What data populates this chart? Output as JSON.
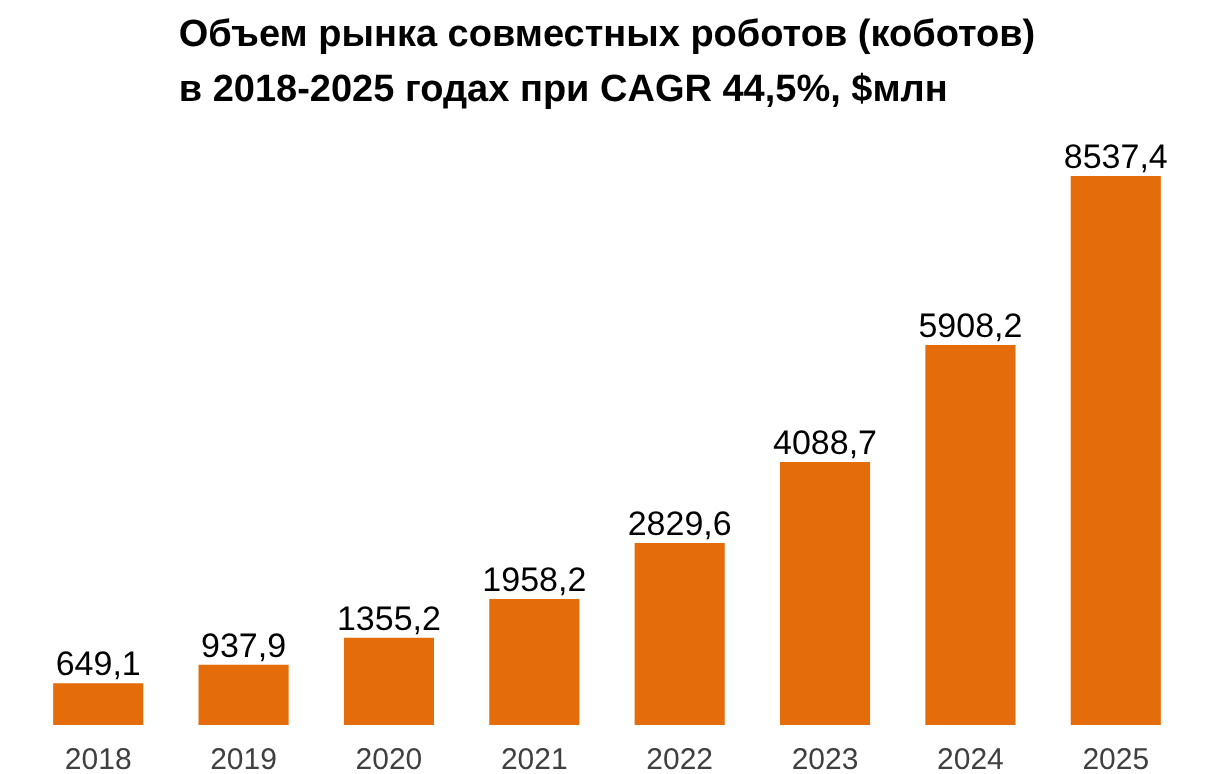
{
  "chart_data": {
    "type": "bar",
    "title": "Объем рынка совместных роботов (коботов)\nв 2018-2025 годах при CAGR 44,5%, $млн",
    "categories": [
      "2018",
      "2019",
      "2020",
      "2021",
      "2022",
      "2023",
      "2024",
      "2025"
    ],
    "values": [
      649.1,
      937.9,
      1355.2,
      1958.2,
      2829.6,
      4088.7,
      5908.2,
      8537.4
    ],
    "value_labels": [
      "649,1",
      "937,9",
      "1355,2",
      "1958,2",
      "2829,6",
      "4088,7",
      "5908,2",
      "8537,4"
    ],
    "color": "#e46c0a",
    "grid": false
  }
}
